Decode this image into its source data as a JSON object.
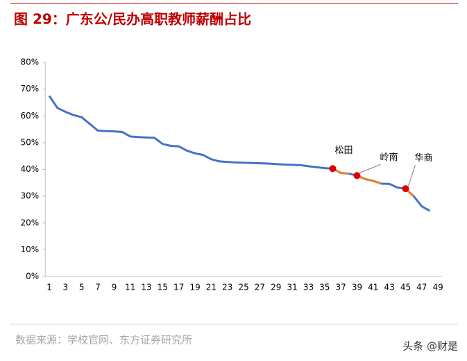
{
  "chart_data": {
    "type": "line",
    "title": "图 29：广东公/民办高职教师薪酬占比",
    "source": "数据来源：学校官网、东方证券研究所",
    "watermark": "头条 @财是",
    "x": [
      1,
      2,
      3,
      4,
      5,
      6,
      7,
      8,
      9,
      10,
      11,
      12,
      13,
      14,
      15,
      16,
      17,
      18,
      19,
      20,
      21,
      22,
      23,
      24,
      25,
      26,
      27,
      28,
      29,
      30,
      31,
      32,
      33,
      34,
      35,
      36,
      37,
      38,
      39,
      40,
      41,
      42,
      43,
      44,
      45,
      46,
      47,
      48
    ],
    "series": [
      {
        "color": "#4472c4",
        "values": [
          67.5,
          63,
          61.5,
          60.3,
          59.5,
          57,
          54.5,
          54.3,
          54.2,
          54,
          52.3,
          52.1,
          51.9,
          51.8,
          49.5,
          48.8,
          48.6,
          47,
          46,
          45.4,
          43.8,
          43,
          42.8,
          42.6,
          42.5,
          42.4,
          42.3,
          42.2,
          42,
          41.8,
          41.7,
          41.6,
          41.2,
          40.8,
          40.5,
          40.3,
          38.7,
          38.4,
          37.7,
          36.4,
          35.7,
          34.7,
          34.6,
          33.2,
          32.8,
          30,
          26.2,
          24.5
        ]
      }
    ],
    "highlight_color": "#ed7d31",
    "highlight_ranges": [
      [
        36,
        38
      ],
      [
        39,
        42
      ],
      [
        45,
        46
      ]
    ],
    "marker_color": "#e00000",
    "annotations": [
      {
        "text": "松田",
        "x": 36
      },
      {
        "text": "岭南",
        "x": 39
      },
      {
        "text": "华商",
        "x": 45
      }
    ],
    "xlim": [
      0.5,
      49.5
    ],
    "xticks": [
      1,
      3,
      5,
      7,
      9,
      11,
      13,
      15,
      17,
      19,
      21,
      23,
      25,
      27,
      29,
      31,
      33,
      35,
      37,
      39,
      41,
      43,
      45,
      47,
      49
    ],
    "ylim": [
      0,
      80
    ],
    "yticks": [
      {
        "value": 0,
        "label": "0%"
      },
      {
        "value": 10,
        "label": "10%"
      },
      {
        "value": 20,
        "label": "20%"
      },
      {
        "value": 30,
        "label": "30%"
      },
      {
        "value": 40,
        "label": "40%"
      },
      {
        "value": 50,
        "label": "50%"
      },
      {
        "value": 60,
        "label": "60%"
      },
      {
        "value": 70,
        "label": "70%"
      },
      {
        "value": 80,
        "label": "80%"
      }
    ]
  }
}
